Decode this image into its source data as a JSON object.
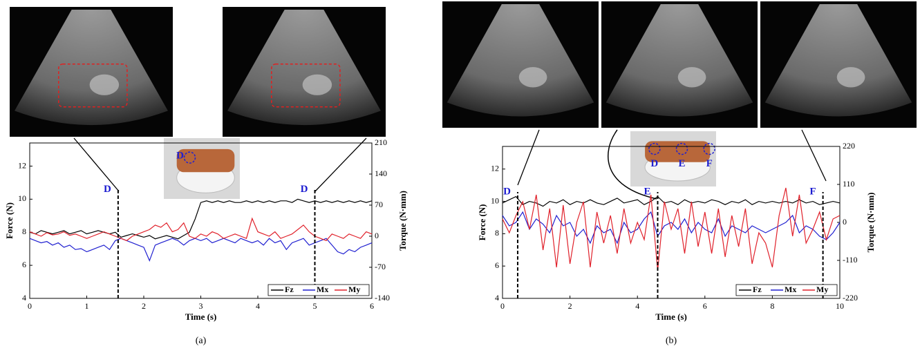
{
  "chart_data": [
    {
      "type": "line",
      "caption": "(a)",
      "xlabel": "Time (s)",
      "ylabel": "Force (N)",
      "y2label": "Torque (N·mm)",
      "xlim": [
        0,
        6
      ],
      "xticks": [
        0,
        1,
        2,
        3,
        4,
        5,
        6
      ],
      "ylim": [
        4,
        13.4
      ],
      "yticks": [
        4,
        6,
        8,
        10,
        12
      ],
      "y2lim": [
        -140,
        210
      ],
      "y2ticks": [
        -140,
        -70,
        0,
        70,
        140,
        210
      ],
      "legend": "lower right",
      "markers": [
        {
          "x": 1.55,
          "label": "D"
        },
        {
          "x": 5.0,
          "label": "D"
        }
      ],
      "inset_labels": [
        "D"
      ],
      "x": [
        0,
        0.1,
        0.2,
        0.3,
        0.4,
        0.5,
        0.6,
        0.7,
        0.8,
        0.9,
        1,
        1.1,
        1.2,
        1.3,
        1.4,
        1.5,
        1.6,
        1.7,
        1.8,
        1.9,
        2,
        2.1,
        2.2,
        2.3,
        2.4,
        2.5,
        2.6,
        2.7,
        2.8,
        2.9,
        3,
        3.1,
        3.2,
        3.3,
        3.4,
        3.5,
        3.6,
        3.7,
        3.8,
        3.9,
        4,
        4.1,
        4.2,
        4.3,
        4.4,
        4.5,
        4.6,
        4.7,
        4.8,
        4.9,
        5,
        5.1,
        5.2,
        5.3,
        5.4,
        5.5,
        5.6,
        5.7,
        5.8,
        5.9,
        6
      ],
      "series": [
        {
          "name": "Fz",
          "color": "#000000",
          "values": [
            8.0,
            7.9,
            8.1,
            8.0,
            7.9,
            8.0,
            8.1,
            7.9,
            8.0,
            8.1,
            7.9,
            8.0,
            8.1,
            8.0,
            7.9,
            8.0,
            7.7,
            7.8,
            7.9,
            7.8,
            7.7,
            7.8,
            7.6,
            7.7,
            7.8,
            7.7,
            7.6,
            7.8,
            8.0,
            8.8,
            9.8,
            9.9,
            9.8,
            9.9,
            9.8,
            9.9,
            9.8,
            9.8,
            9.9,
            9.8,
            9.9,
            9.8,
            9.9,
            9.8,
            9.9,
            9.9,
            9.8,
            10.0,
            9.9,
            9.8,
            9.9,
            9.8,
            9.9,
            9.8,
            9.9,
            9.8,
            9.9,
            9.8,
            9.9,
            9.8,
            9.9
          ]
        },
        {
          "name": "Mx",
          "color": "#1f1fd0",
          "axis": "y2",
          "values": [
            -5,
            -10,
            -15,
            -12,
            -20,
            -15,
            -25,
            -20,
            -30,
            -28,
            -35,
            -30,
            -25,
            -20,
            -30,
            -10,
            -5,
            -10,
            -15,
            -20,
            -25,
            -55,
            -20,
            -15,
            -10,
            -5,
            -10,
            -20,
            -10,
            -5,
            -10,
            -5,
            -15,
            -10,
            -5,
            -10,
            -15,
            -5,
            -10,
            -15,
            -10,
            -20,
            -5,
            -15,
            -10,
            -30,
            -15,
            -10,
            -5,
            -20,
            -15,
            -10,
            -5,
            -20,
            -35,
            -40,
            -30,
            -35,
            -25,
            -20,
            -15
          ]
        },
        {
          "name": "My",
          "color": "#e0202a",
          "axis": "y2",
          "values": [
            10,
            5,
            0,
            8,
            3,
            5,
            10,
            2,
            5,
            0,
            -5,
            0,
            5,
            10,
            5,
            0,
            -5,
            -10,
            0,
            5,
            10,
            15,
            25,
            20,
            30,
            10,
            15,
            30,
            0,
            -5,
            5,
            0,
            10,
            5,
            -5,
            0,
            5,
            0,
            -5,
            40,
            10,
            5,
            0,
            10,
            -5,
            0,
            5,
            15,
            25,
            10,
            0,
            -5,
            -10,
            5,
            0,
            -5,
            5,
            0,
            -5,
            10,
            5
          ]
        }
      ]
    },
    {
      "type": "line",
      "caption": "(b)",
      "xlabel": "Time (s)",
      "ylabel": "Force (N)",
      "y2label": "Torque (N·mm)",
      "xlim": [
        0,
        10
      ],
      "xticks": [
        0,
        2,
        4,
        6,
        8,
        10
      ],
      "ylim": [
        4,
        13.4
      ],
      "yticks": [
        4,
        6,
        8,
        10,
        12
      ],
      "y2lim": [
        -220,
        220
      ],
      "y2ticks": [
        -220,
        -110,
        0,
        110,
        220
      ],
      "legend": "lower right",
      "markers": [
        {
          "x": 0.45,
          "label": "D"
        },
        {
          "x": 4.6,
          "label": "E"
        },
        {
          "x": 9.5,
          "label": "F"
        }
      ],
      "inset_labels": [
        "D",
        "E",
        "F"
      ],
      "x": [
        0,
        0.2,
        0.4,
        0.6,
        0.8,
        1,
        1.2,
        1.4,
        1.6,
        1.8,
        2,
        2.2,
        2.4,
        2.6,
        2.8,
        3,
        3.2,
        3.4,
        3.6,
        3.8,
        4,
        4.2,
        4.4,
        4.6,
        4.8,
        5,
        5.2,
        5.4,
        5.6,
        5.8,
        6,
        6.2,
        6.4,
        6.6,
        6.8,
        7,
        7.2,
        7.4,
        7.6,
        7.8,
        8,
        8.2,
        8.4,
        8.6,
        8.8,
        9,
        9.2,
        9.4,
        9.6,
        9.8,
        10
      ],
      "series": [
        {
          "name": "Fz",
          "color": "#000000",
          "values": [
            9.9,
            10.1,
            10.3,
            9.8,
            10.0,
            9.9,
            9.7,
            10.0,
            9.9,
            10.1,
            9.8,
            10.0,
            9.9,
            10.1,
            9.9,
            9.8,
            10.0,
            10.2,
            9.9,
            10.0,
            10.1,
            9.8,
            10.0,
            10.3,
            9.9,
            10.0,
            9.8,
            10.1,
            9.9,
            10.0,
            9.9,
            10.1,
            10.0,
            9.8,
            10.0,
            9.9,
            10.1,
            9.8,
            10.0,
            9.9,
            10.0,
            9.9,
            10.0,
            9.9,
            10.1,
            9.9,
            10.0,
            9.8,
            9.9,
            10.0,
            9.9
          ]
        },
        {
          "name": "Mx",
          "color": "#1f1fd0",
          "axis": "y2",
          "values": [
            20,
            -10,
            0,
            30,
            -20,
            10,
            -5,
            -30,
            20,
            -10,
            0,
            -40,
            -20,
            -60,
            -10,
            -30,
            -20,
            -60,
            0,
            -30,
            -20,
            10,
            30,
            -40,
            -10,
            0,
            -20,
            10,
            -30,
            0,
            -20,
            -30,
            10,
            -40,
            -10,
            -20,
            -30,
            -10,
            -20,
            -30,
            -20,
            -10,
            0,
            20,
            -30,
            -10,
            -20,
            -40,
            -50,
            -30,
            0
          ]
        },
        {
          "name": "My",
          "color": "#e0202a",
          "axis": "y2",
          "values": [
            10,
            -30,
            20,
            60,
            -20,
            80,
            -80,
            40,
            -130,
            50,
            -120,
            0,
            60,
            -130,
            30,
            -60,
            20,
            -90,
            40,
            -60,
            0,
            -50,
            80,
            -140,
            60,
            -20,
            40,
            -90,
            60,
            -70,
            30,
            -90,
            40,
            -100,
            20,
            -70,
            40,
            -120,
            -30,
            -60,
            -130,
            20,
            100,
            -40,
            80,
            -60,
            -20,
            30,
            -50,
            10,
            20
          ]
        }
      ]
    }
  ]
}
